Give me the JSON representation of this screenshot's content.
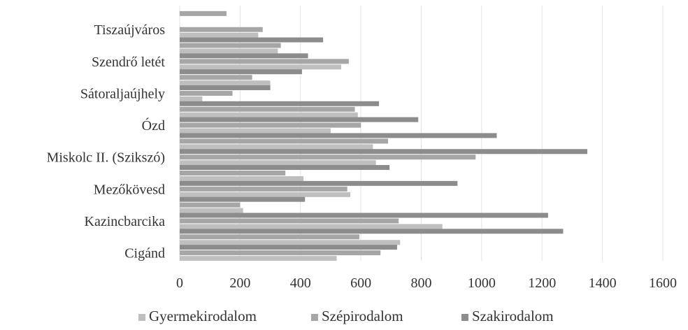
{
  "chart_data": {
    "type": "bar",
    "orientation": "horizontal",
    "stacked": false,
    "categories": [
      "Cigánd",
      "",
      "Kazincbarcika",
      "",
      "Mezőkövesd",
      "",
      "Miskolc II. (Szikszó)",
      "",
      "Ózd",
      "",
      "Sátoraljaújhely",
      "",
      "Szendrő letét",
      "",
      "Tiszaújváros",
      ""
    ],
    "series": [
      {
        "name": "Gyermekirodalom",
        "color": "#bfbfbf",
        "values": [
          520,
          730,
          870,
          210,
          565,
          410,
          650,
          640,
          500,
          590,
          75,
          300,
          535,
          325,
          260,
          0
        ]
      },
      {
        "name": "Szépirodalom",
        "color": "#a6a6a6",
        "values": [
          665,
          595,
          725,
          200,
          555,
          350,
          980,
          690,
          600,
          580,
          175,
          240,
          560,
          335,
          275,
          155
        ]
      },
      {
        "name": "Szakirodalom",
        "color": "#8c8c8c",
        "values": [
          720,
          1270,
          1220,
          415,
          920,
          695,
          1350,
          1050,
          790,
          660,
          300,
          405,
          425,
          475,
          0,
          0
        ]
      }
    ],
    "xlim": [
      0,
      1600
    ],
    "xticks": [
      0,
      200,
      400,
      600,
      800,
      1000,
      1200,
      1400,
      1600
    ],
    "grid": true,
    "legend": "bottom",
    "title": "",
    "xlabel": "",
    "ylabel": ""
  }
}
